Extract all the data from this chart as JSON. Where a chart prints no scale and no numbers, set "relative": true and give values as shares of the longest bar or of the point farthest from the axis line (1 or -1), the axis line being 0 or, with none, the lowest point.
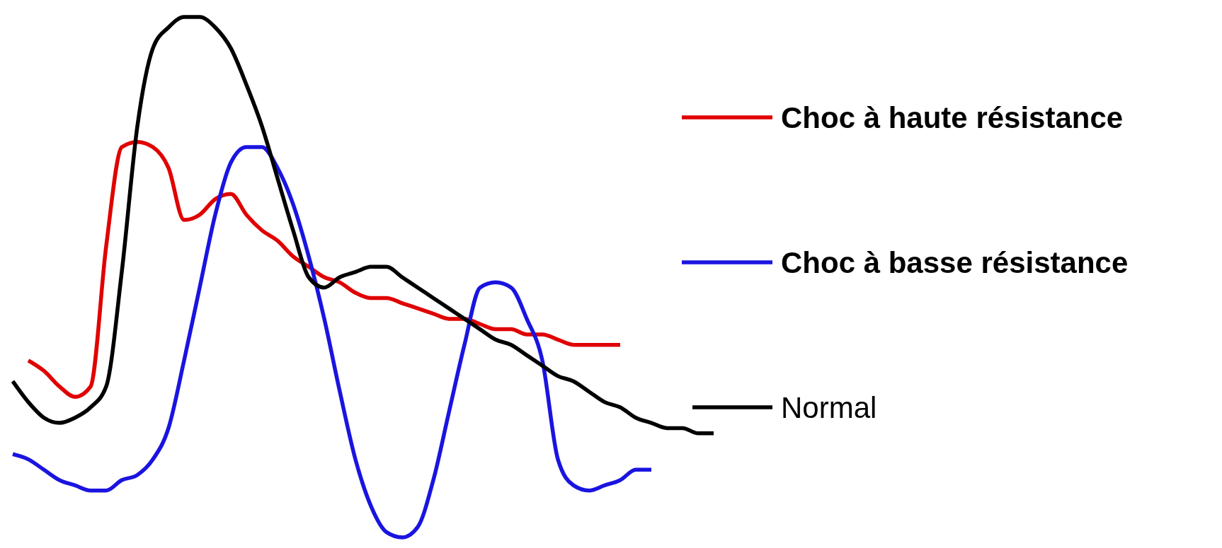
{
  "chart_data": {
    "type": "line",
    "relative": true,
    "legend": "right",
    "marker": "none",
    "line_style": "solid",
    "categories": [
      null,
      null,
      null,
      null,
      null,
      null,
      null,
      null,
      null,
      null,
      null,
      null,
      null,
      null,
      null,
      null,
      null,
      null,
      null,
      null,
      null,
      null,
      null,
      null,
      null,
      null,
      null,
      null,
      null,
      null,
      null,
      null,
      null,
      null,
      null,
      null,
      null,
      null,
      null,
      null,
      null,
      null,
      null,
      null,
      null,
      null
    ],
    "series": [
      {
        "name": "Choc à haute résistance",
        "color": "#e00000",
        "values": [
          null,
          0.34,
          0.32,
          0.29,
          0.27,
          0.29,
          0.56,
          0.75,
          0.76,
          0.75,
          0.71,
          0.61,
          0.62,
          0.65,
          0.66,
          0.62,
          0.59,
          0.57,
          0.54,
          0.52,
          0.5,
          0.49,
          0.47,
          0.46,
          0.46,
          0.45,
          0.44,
          0.43,
          0.42,
          0.42,
          0.41,
          0.4,
          0.4,
          0.39,
          0.39,
          0.38,
          0.37,
          0.37,
          0.37,
          0.37,
          null,
          null,
          null,
          null,
          null,
          null
        ]
      },
      {
        "name": "Choc à basse résistance",
        "color": "#1a14e0",
        "values": [
          0.16,
          0.15,
          0.13,
          0.11,
          0.1,
          0.09,
          0.09,
          0.11,
          0.12,
          0.15,
          0.21,
          0.34,
          0.48,
          0.62,
          0.72,
          0.75,
          0.75,
          0.71,
          0.64,
          0.54,
          0.42,
          0.28,
          0.15,
          0.06,
          0.01,
          0,
          0.02,
          0.11,
          0.24,
          0.37,
          0.48,
          0.49,
          0.48,
          0.42,
          0.34,
          0.15,
          0.1,
          0.09,
          0.1,
          0.11,
          0.13,
          0.13,
          null,
          null,
          null,
          null
        ]
      },
      {
        "name": "Normal",
        "color": "#000000",
        "values": [
          0.3,
          0.26,
          0.23,
          0.22,
          0.23,
          0.25,
          0.29,
          0.51,
          0.79,
          0.94,
          0.98,
          1,
          1,
          0.98,
          0.94,
          0.87,
          0.79,
          0.69,
          0.59,
          0.5,
          0.48,
          0.5,
          0.51,
          0.52,
          0.52,
          0.5,
          0.48,
          0.46,
          0.44,
          0.42,
          0.4,
          0.38,
          0.37,
          0.35,
          0.33,
          0.31,
          0.3,
          0.28,
          0.26,
          0.25,
          0.23,
          0.22,
          0.21,
          0.21,
          0.2,
          0.2
        ]
      }
    ]
  }
}
